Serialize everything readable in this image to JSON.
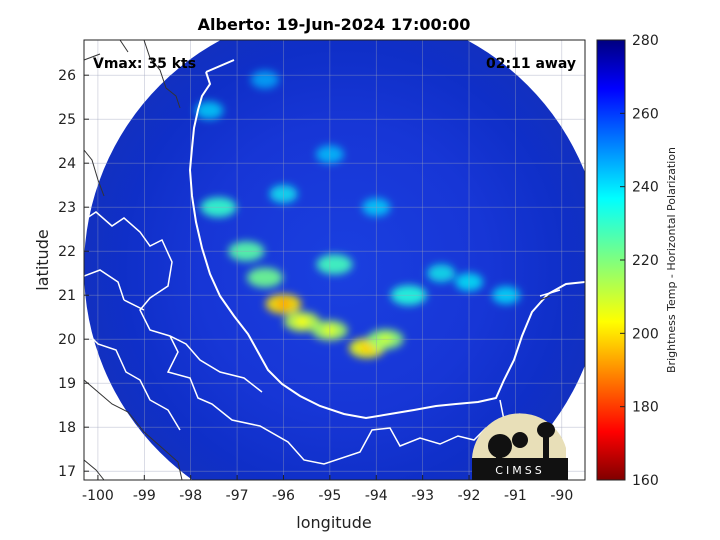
{
  "chart_data": {
    "type": "heatmap",
    "title": "Alberto: 19-Jun-2024 17:00:00",
    "xlabel": "longitude",
    "ylabel": "latitude",
    "xlim": [
      -100.3,
      -89.5
    ],
    "ylim": [
      16.8,
      26.8
    ],
    "xticks": [
      -100,
      -99,
      -98,
      -97,
      -96,
      -95,
      -94,
      -93,
      -92,
      -91,
      -90
    ],
    "yticks": [
      17,
      18,
      19,
      20,
      21,
      22,
      23,
      24,
      25,
      26
    ],
    "grid": true,
    "annotations": {
      "left": "Vmax: 35 kts",
      "right": "02:11 away"
    },
    "colorbar": {
      "label": "Brightness Temp - Horizontal Polarization",
      "range": [
        160,
        280
      ],
      "ticks": [
        160,
        180,
        200,
        220,
        240,
        260,
        280
      ],
      "placement": "right"
    },
    "swath": {
      "center": [
        -94.7,
        21.6
      ],
      "radius_deg": 5.6
    },
    "convective_features": [
      {
        "lon": -96.0,
        "lat": 20.8,
        "value": 200
      },
      {
        "lon": -95.6,
        "lat": 20.4,
        "value": 212
      },
      {
        "lon": -95.0,
        "lat": 20.2,
        "value": 215
      },
      {
        "lon": -94.2,
        "lat": 19.8,
        "value": 205
      },
      {
        "lon": -93.8,
        "lat": 20.0,
        "value": 218
      },
      {
        "lon": -96.8,
        "lat": 22.0,
        "value": 225
      },
      {
        "lon": -96.4,
        "lat": 21.4,
        "value": 222
      },
      {
        "lon": -97.4,
        "lat": 23.0,
        "value": 230
      },
      {
        "lon": -94.9,
        "lat": 21.7,
        "value": 228
      },
      {
        "lon": -93.3,
        "lat": 21.0,
        "value": 232
      },
      {
        "lon": -92.6,
        "lat": 21.5,
        "value": 234
      },
      {
        "lon": -92.0,
        "lat": 21.3,
        "value": 236
      },
      {
        "lon": -91.2,
        "lat": 21.0,
        "value": 238
      },
      {
        "lon": -96.0,
        "lat": 23.3,
        "value": 235
      },
      {
        "lon": -95.0,
        "lat": 24.2,
        "value": 242
      },
      {
        "lon": -97.6,
        "lat": 25.2,
        "value": 240
      },
      {
        "lon": -96.4,
        "lat": 25.9,
        "value": 245
      },
      {
        "lon": -94.0,
        "lat": 23.0,
        "value": 240
      }
    ],
    "logo": "CIMSS"
  }
}
